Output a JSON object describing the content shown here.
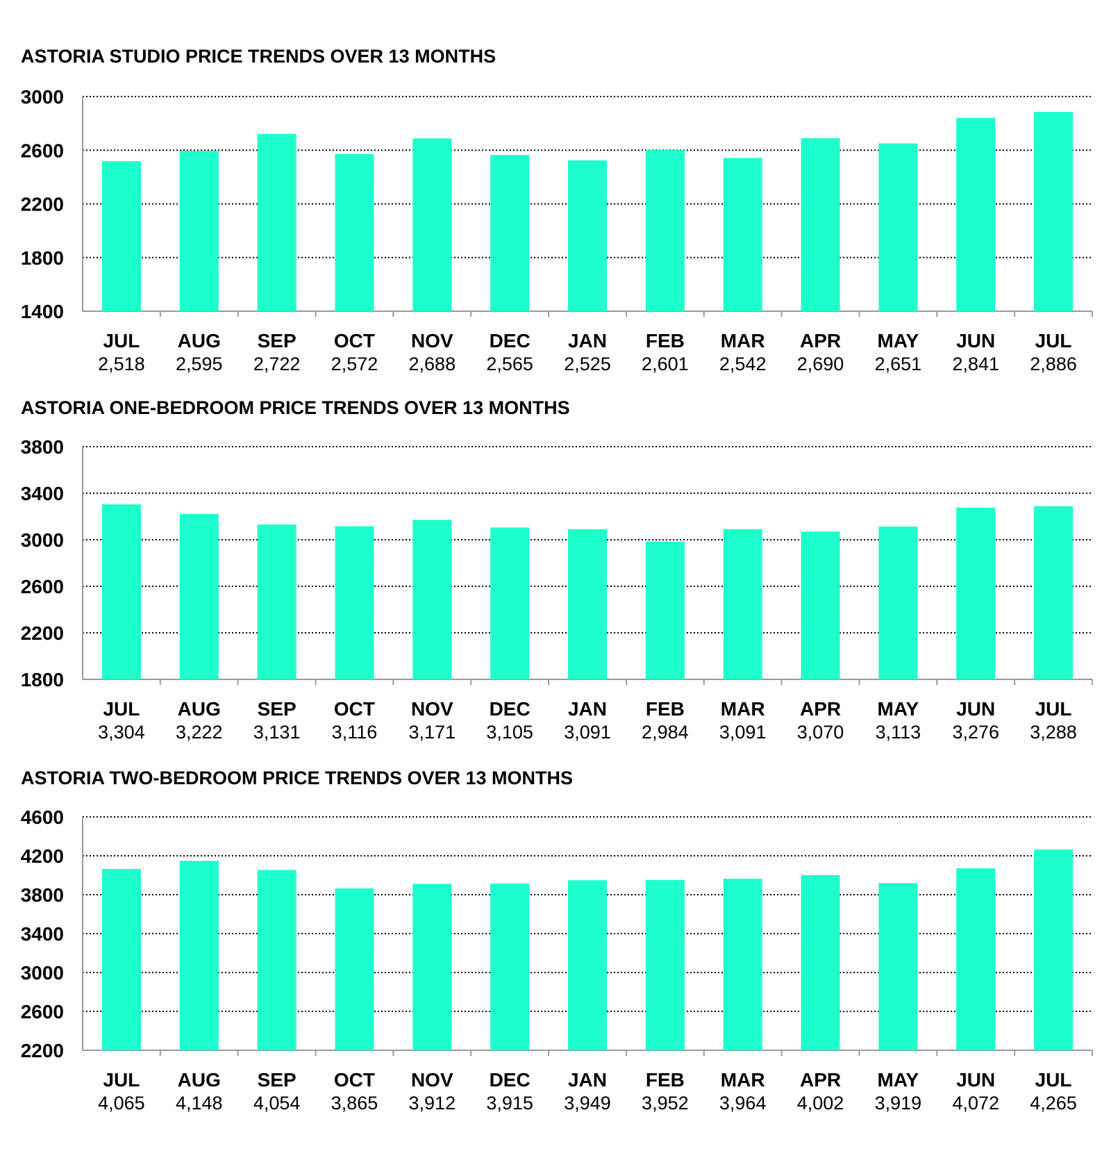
{
  "chart_data": [
    {
      "type": "bar",
      "title": "ASTORIA STUDIO PRICE TRENDS OVER 13 MONTHS",
      "categories": [
        "JUL",
        "AUG",
        "SEP",
        "OCT",
        "NOV",
        "DEC",
        "JAN",
        "FEB",
        "MAR",
        "APR",
        "MAY",
        "JUN",
        "JUL"
      ],
      "values": [
        2518,
        2595,
        2722,
        2572,
        2688,
        2565,
        2525,
        2601,
        2542,
        2690,
        2651,
        2841,
        2886
      ],
      "value_labels": [
        "2,518",
        "2,595",
        "2,722",
        "2,572",
        "2,688",
        "2,565",
        "2,525",
        "2,601",
        "2,542",
        "2,690",
        "2,651",
        "2,841",
        "2,886"
      ],
      "yticks": [
        "1400",
        "1800",
        "2200",
        "2600",
        "3000"
      ],
      "ylim": [
        1400,
        3000
      ],
      "xlabel": "",
      "ylabel": "",
      "grid": true,
      "color": "#1dffcd"
    },
    {
      "type": "bar",
      "title": "ASTORIA ONE-BEDROOM PRICE TRENDS OVER 13 MONTHS",
      "categories": [
        "JUL",
        "AUG",
        "SEP",
        "OCT",
        "NOV",
        "DEC",
        "JAN",
        "FEB",
        "MAR",
        "APR",
        "MAY",
        "JUN",
        "JUL"
      ],
      "values": [
        3304,
        3222,
        3131,
        3116,
        3171,
        3105,
        3091,
        2984,
        3091,
        3070,
        3113,
        3276,
        3288
      ],
      "value_labels": [
        "3,304",
        "3,222",
        "3,131",
        "3,116",
        "3,171",
        "3,105",
        "3,091",
        "2,984",
        "3,091",
        "3,070",
        "3,113",
        "3,276",
        "3,288"
      ],
      "yticks": [
        "1800",
        "2200",
        "2600",
        "3000",
        "3400",
        "3800"
      ],
      "ylim": [
        1800,
        3800
      ],
      "xlabel": "",
      "ylabel": "",
      "grid": true,
      "color": "#1dffcd"
    },
    {
      "type": "bar",
      "title": "ASTORIA TWO-BEDROOM PRICE TRENDS OVER 13 MONTHS",
      "categories": [
        "JUL",
        "AUG",
        "SEP",
        "OCT",
        "NOV",
        "DEC",
        "JAN",
        "FEB",
        "MAR",
        "APR",
        "MAY",
        "JUN",
        "JUL"
      ],
      "values": [
        4065,
        4148,
        4054,
        3865,
        3912,
        3915,
        3949,
        3952,
        3964,
        4002,
        3919,
        4072,
        4265
      ],
      "value_labels": [
        "4,065",
        "4,148",
        "4,054",
        "3,865",
        "3,912",
        "3,915",
        "3,949",
        "3,952",
        "3,964",
        "4,002",
        "3,919",
        "4,072",
        "4,265"
      ],
      "yticks": [
        "2200",
        "2600",
        "3000",
        "3400",
        "3800",
        "4200",
        "4600"
      ],
      "ylim": [
        2200,
        4600
      ],
      "xlabel": "",
      "ylabel": "",
      "grid": true,
      "color": "#1dffcd"
    }
  ]
}
